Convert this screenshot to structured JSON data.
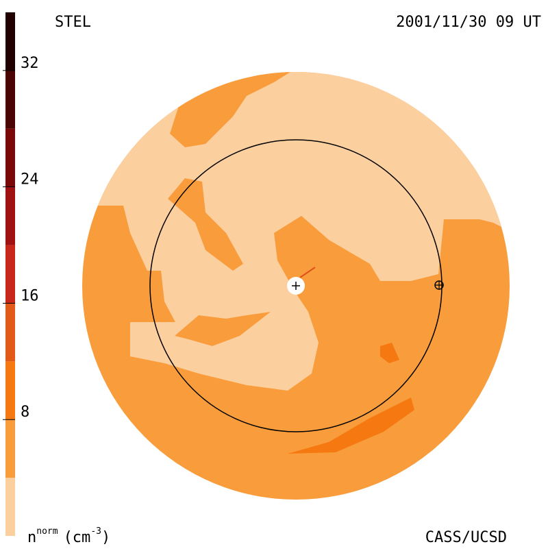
{
  "chart_data": {
    "type": "map",
    "title": "STEL",
    "subtitle": "2001/11/30 09 UT",
    "credit": "CASS/UCSD",
    "colorbar_label": {
      "base": "n",
      "sup": "norm",
      "unit": "(cm",
      "unit_sup": "-3",
      "close": ")"
    },
    "bins": [
      0,
      4,
      8,
      12,
      16,
      20,
      24,
      28,
      32,
      36
    ],
    "colors": [
      "#fccf9f",
      "#f99d3c",
      "#f57810",
      "#e25a18",
      "#c8281a",
      "#a01212",
      "#7a0808",
      "#4a0404",
      "#200000"
    ],
    "ylim": [
      0,
      36
    ],
    "yticks": [
      8,
      16,
      24,
      32
    ]
  }
}
